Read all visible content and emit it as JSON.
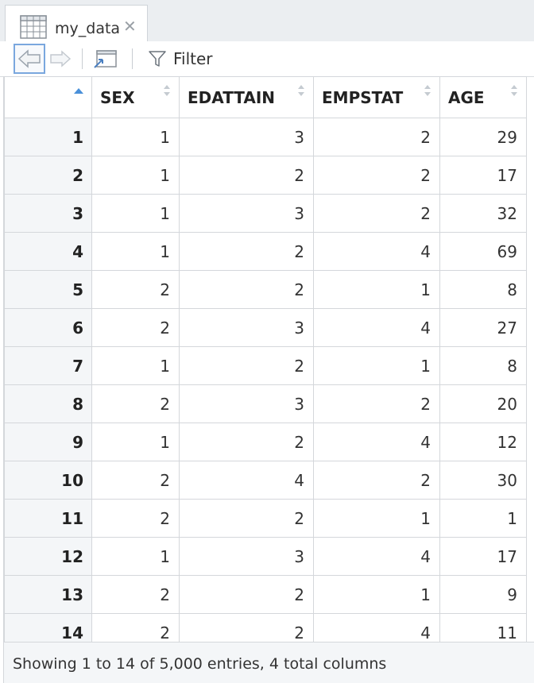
{
  "tab": {
    "label": "my_data",
    "close_symbol": "✕",
    "icon": "table-grid-icon"
  },
  "toolbar": {
    "back_icon": "arrow-left-icon",
    "forward_icon": "arrow-right-icon",
    "popout_icon": "popout-window-icon",
    "filter_icon": "filter-funnel-icon",
    "filter_label": "Filter"
  },
  "table": {
    "columns": [
      "SEX",
      "EDATTAIN",
      "EMPSTAT",
      "AGE"
    ],
    "rows": [
      {
        "n": "1",
        "v": [
          "1",
          "3",
          "2",
          "29"
        ]
      },
      {
        "n": "2",
        "v": [
          "1",
          "2",
          "2",
          "17"
        ]
      },
      {
        "n": "3",
        "v": [
          "1",
          "3",
          "2",
          "32"
        ]
      },
      {
        "n": "4",
        "v": [
          "1",
          "2",
          "4",
          "69"
        ]
      },
      {
        "n": "5",
        "v": [
          "2",
          "2",
          "1",
          "8"
        ]
      },
      {
        "n": "6",
        "v": [
          "2",
          "3",
          "4",
          "27"
        ]
      },
      {
        "n": "7",
        "v": [
          "1",
          "2",
          "1",
          "8"
        ]
      },
      {
        "n": "8",
        "v": [
          "2",
          "3",
          "2",
          "20"
        ]
      },
      {
        "n": "9",
        "v": [
          "1",
          "2",
          "4",
          "12"
        ]
      },
      {
        "n": "10",
        "v": [
          "2",
          "4",
          "2",
          "30"
        ]
      },
      {
        "n": "11",
        "v": [
          "2",
          "2",
          "1",
          "1"
        ]
      },
      {
        "n": "12",
        "v": [
          "1",
          "3",
          "4",
          "17"
        ]
      },
      {
        "n": "13",
        "v": [
          "2",
          "2",
          "1",
          "9"
        ]
      },
      {
        "n": "14",
        "v": [
          "2",
          "2",
          "4",
          "11"
        ]
      }
    ]
  },
  "footer": {
    "status": "Showing 1 to 14 of 5,000 entries, 4 total columns"
  },
  "colors": {
    "accent": "#4a90d9",
    "header_bg": "#ffffff",
    "rownum_bg": "#f4f6f8",
    "border": "#d4d7db"
  }
}
